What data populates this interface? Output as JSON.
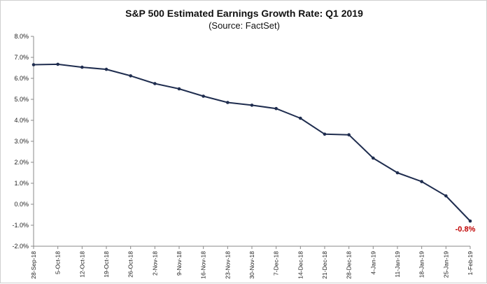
{
  "chart_data": {
    "type": "line",
    "title": "S&P 500 Estimated Earnings Growth Rate: Q1 2019",
    "subtitle": "(Source: FactSet)",
    "xlabel": "",
    "ylabel": "",
    "ylim": [
      -2.0,
      8.0
    ],
    "y_ticks": [
      "8.0%",
      "7.0%",
      "6.0%",
      "5.0%",
      "4.0%",
      "3.0%",
      "2.0%",
      "1.0%",
      "0.0%",
      "-1.0%",
      "-2.0%"
    ],
    "y_tick_values": [
      8,
      7,
      6,
      5,
      4,
      3,
      2,
      1,
      0,
      -1,
      -2
    ],
    "categories": [
      "28-Sep-18",
      "5-Oct-18",
      "12-Oct-18",
      "19-Oct-18",
      "26-Oct-18",
      "2-Nov-18",
      "9-Nov-18",
      "16-Nov-18",
      "23-Nov-18",
      "30-Nov-18",
      "7-Dec-18",
      "14-Dec-18",
      "21-Dec-18",
      "28-Dec-18",
      "4-Jan-19",
      "11-Jan-19",
      "18-Jan-19",
      "25-Jan-19",
      "1-Feb-19"
    ],
    "series": [
      {
        "values": [
          6.65,
          6.67,
          6.53,
          6.43,
          6.12,
          5.75,
          5.5,
          5.15,
          4.85,
          4.72,
          4.56,
          4.1,
          3.34,
          3.31,
          2.2,
          1.5,
          1.08,
          0.4,
          -0.8
        ]
      }
    ],
    "annotation": {
      "text": "-0.8%",
      "index": 18
    },
    "grid": false,
    "legend": "none",
    "colors": {
      "line": "#1f2d4f",
      "marker": "#1f2d4f",
      "annotation": "#c00000",
      "axis": "#888888"
    }
  }
}
